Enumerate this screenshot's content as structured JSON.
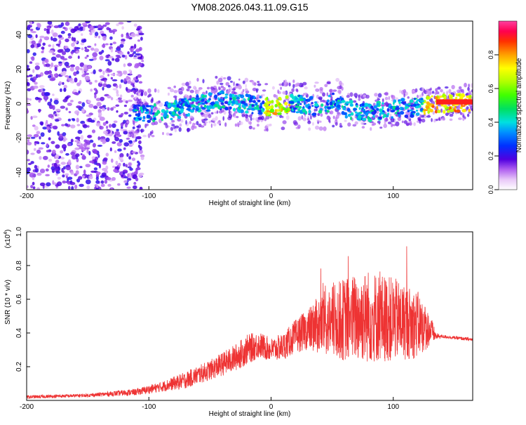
{
  "chart_data": [
    {
      "type": "heatmap",
      "title": "YM08.2026.043.11.09.G15",
      "xlabel": "Height of straight line (km)",
      "ylabel": "Frequency (Hz)",
      "xlim": [
        -200,
        165
      ],
      "ylim": [
        -50,
        48
      ],
      "xticks": [
        -200,
        -100,
        0,
        100
      ],
      "yticks": [
        -40,
        -20,
        0,
        20,
        40
      ],
      "colorbar": {
        "label": "Normalized spectral amplitude",
        "range": [
          0,
          1
        ],
        "ticks": [
          "0.0",
          "0.2",
          "0.4",
          "0.6",
          "0.8"
        ],
        "tick_values": [
          0.0,
          0.2,
          0.4,
          0.6,
          0.8
        ]
      },
      "ridge": {
        "description_points_km": [
          -110,
          -100,
          -80,
          -60,
          -40,
          -20,
          0,
          20,
          40,
          55,
          60,
          80,
          100,
          120,
          135,
          165
        ],
        "frequency_hz": [
          -5,
          -6,
          -4,
          0,
          2,
          0,
          -2,
          0,
          -2,
          2,
          -3,
          -5,
          -3,
          -2,
          0,
          1
        ]
      }
    },
    {
      "type": "line",
      "xlabel": "Height of straight line (km)",
      "ylabel": "SNR (10 * v/v)",
      "y_scale_label": "(x10",
      "y_scale_exp": "4",
      "y_scale_close": ")",
      "xlim": [
        -200,
        165
      ],
      "ylim": [
        0,
        1.0
      ],
      "xticks": [
        -200,
        -100,
        0,
        100
      ],
      "yticks": [
        0.2,
        0.4,
        0.6,
        0.8,
        1.0
      ],
      "ytick_labels": [
        "0.2",
        "0.4",
        "0.6",
        "0.8",
        "1.0"
      ],
      "color": "#ee3333",
      "envelope": {
        "x": [
          -200,
          -150,
          -110,
          -90,
          -70,
          -50,
          -30,
          -20,
          -10,
          0,
          10,
          20,
          30,
          40,
          60,
          80,
          100,
          120,
          130,
          135,
          140,
          165
        ],
        "y": [
          0.02,
          0.03,
          0.05,
          0.08,
          0.12,
          0.18,
          0.25,
          0.3,
          0.33,
          0.3,
          0.32,
          0.38,
          0.42,
          0.45,
          0.48,
          0.5,
          0.48,
          0.45,
          0.42,
          0.38,
          0.38,
          0.36
        ],
        "spread": [
          0.01,
          0.01,
          0.02,
          0.03,
          0.05,
          0.06,
          0.08,
          0.09,
          0.08,
          0.07,
          0.08,
          0.1,
          0.12,
          0.18,
          0.25,
          0.28,
          0.25,
          0.2,
          0.1,
          0.02,
          0.01,
          0.01
        ]
      }
    }
  ]
}
